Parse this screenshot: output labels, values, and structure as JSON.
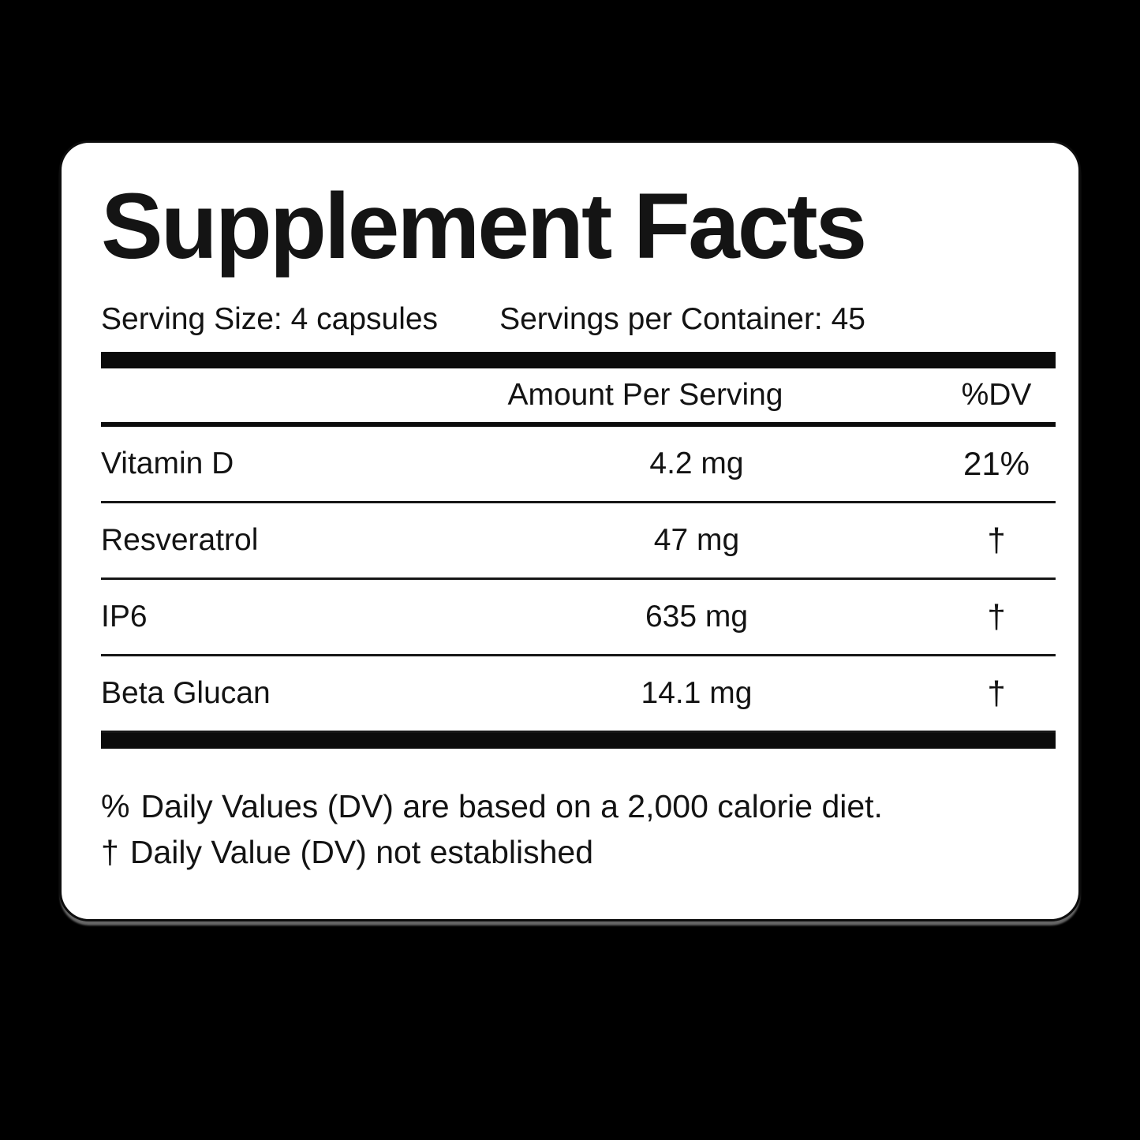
{
  "label": {
    "title": "Supplement Facts",
    "serving_size": "Serving Size: 4 capsules",
    "servings_per_container": "Servings per Container: 45",
    "columns": {
      "amount": "Amount Per Serving",
      "dv": "%DV"
    },
    "rows": [
      {
        "name": "Vitamin D",
        "amount": "4.2 mg",
        "dv": "21%"
      },
      {
        "name": "Resveratrol",
        "amount": "47 mg",
        "dv": "†"
      },
      {
        "name": "IP6",
        "amount": "635 mg",
        "dv": "†"
      },
      {
        "name": "Beta Glucan",
        "amount": "14.1 mg",
        "dv": "†"
      }
    ],
    "footnotes": [
      {
        "symbol": "%",
        "text": "Daily Values (DV) are based on a 2,000 calorie diet."
      },
      {
        "symbol": "†",
        "text": "Daily Value (DV) not established"
      }
    ],
    "colors": {
      "background": "#000000",
      "card": "#ffffff",
      "text": "#111111"
    }
  }
}
